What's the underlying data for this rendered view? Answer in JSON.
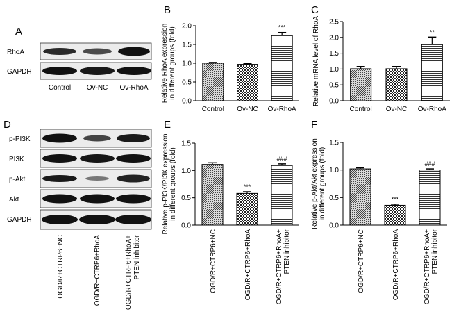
{
  "figure": {
    "panel_letters": [
      "A",
      "B",
      "C",
      "D",
      "E",
      "F"
    ],
    "blot_a": {
      "rows": [
        "RhoA",
        "GAPDH"
      ],
      "lanes": [
        "Control",
        "Ov-NC",
        "Ov-RhoA"
      ]
    },
    "blot_d": {
      "rows": [
        "p-PI3K",
        "PI3K",
        "p-Akt",
        "Akt",
        "GAPDH"
      ],
      "lanes": [
        "OGD/R+CTRP6+NC",
        "OGD/R+CTRP6+RhoA",
        "OGD/R+CTRP6+RhoA+",
        "PTEN inhibitor"
      ]
    }
  },
  "chart_data": [
    {
      "panel": "B",
      "type": "bar",
      "categories": [
        "Control",
        "Ov-NC",
        "Ov-RhoA"
      ],
      "category_lines": [
        [
          "Control"
        ],
        [
          "Ov-NC"
        ],
        [
          "Ov-RhoA"
        ]
      ],
      "values": [
        1.0,
        0.97,
        1.75
      ],
      "errors": [
        0.02,
        0.02,
        0.07
      ],
      "significance": [
        "",
        "",
        "***"
      ],
      "ylabel_lines": [
        "Relative RhoA expression",
        "in different groups (fold)"
      ],
      "ylim": [
        0,
        2.0
      ],
      "yticks": [
        "0.0",
        "0.5",
        "1.0",
        "1.5",
        "2.0"
      ],
      "xlabel_rotation": "horizontal",
      "patterns": [
        "hatch",
        "checker",
        "stripes"
      ]
    },
    {
      "panel": "C",
      "type": "bar",
      "categories": [
        "Control",
        "Ov-NC",
        "Ov-RhoA"
      ],
      "category_lines": [
        [
          "Control"
        ],
        [
          "Ov-NC"
        ],
        [
          "Ov-RhoA"
        ]
      ],
      "values": [
        1.01,
        1.01,
        1.77
      ],
      "errors": [
        0.07,
        0.07,
        0.24
      ],
      "significance": [
        "",
        "",
        "**"
      ],
      "ylabel_lines": [
        "Relative mRNA level of RhoA"
      ],
      "ylim": [
        0,
        2.5
      ],
      "yticks": [
        "0.0",
        "0.5",
        "1.0",
        "1.5",
        "2.0",
        "2.5"
      ],
      "xlabel_rotation": "horizontal",
      "patterns": [
        "hatch",
        "checker",
        "stripes"
      ]
    },
    {
      "panel": "E",
      "type": "bar",
      "categories": [
        "OGD/R+CTRP6+NC",
        "OGD/R+CTRP6+RhoA",
        "OGD/R+CTRP6+RhoA+ PTEN inhibitor"
      ],
      "category_lines": [
        [
          "OGD/R+CTRP6+NC"
        ],
        [
          "OGD/R+CTRP6+RhoA"
        ],
        [
          "OGD/R+CTRP6+RhoA+",
          "PTEN inhibitor"
        ]
      ],
      "values": [
        1.11,
        0.58,
        1.09
      ],
      "errors": [
        0.03,
        0.03,
        0.03
      ],
      "significance": [
        "",
        "***",
        "###"
      ],
      "ylabel_lines": [
        "Relative p-PI3K/PI3K expression",
        "in different groups (fold)"
      ],
      "ylim": [
        0,
        1.5
      ],
      "yticks": [
        "0.0",
        "0.5",
        "1.0",
        "1.5"
      ],
      "xlabel_rotation": "vertical",
      "patterns": [
        "hatch",
        "checker",
        "stripes"
      ]
    },
    {
      "panel": "F",
      "type": "bar",
      "categories": [
        "OGD/R+CTRP6+NC",
        "OGD/R+CTRP6+RhoA",
        "OGD/R+CTRP6+RhoA+ PTEN inhibitor"
      ],
      "category_lines": [
        [
          "OGD/R+CTRP6+NC"
        ],
        [
          "OGD/R+CTRP6+RhoA"
        ],
        [
          "OGD/R+CTRP6+RhoA+",
          "PTEN inhibitor"
        ]
      ],
      "values": [
        1.02,
        0.36,
        1.0
      ],
      "errors": [
        0.02,
        0.02,
        0.02
      ],
      "significance": [
        "",
        "***",
        "###"
      ],
      "ylabel_lines": [
        "Relative p-Akt/Akt expression",
        "in different groups (fold)"
      ],
      "ylim": [
        0,
        1.5
      ],
      "yticks": [
        "0.0",
        "0.5",
        "1.0",
        "1.5"
      ],
      "xlabel_rotation": "vertical",
      "patterns": [
        "hatch",
        "checker",
        "stripes"
      ]
    }
  ]
}
